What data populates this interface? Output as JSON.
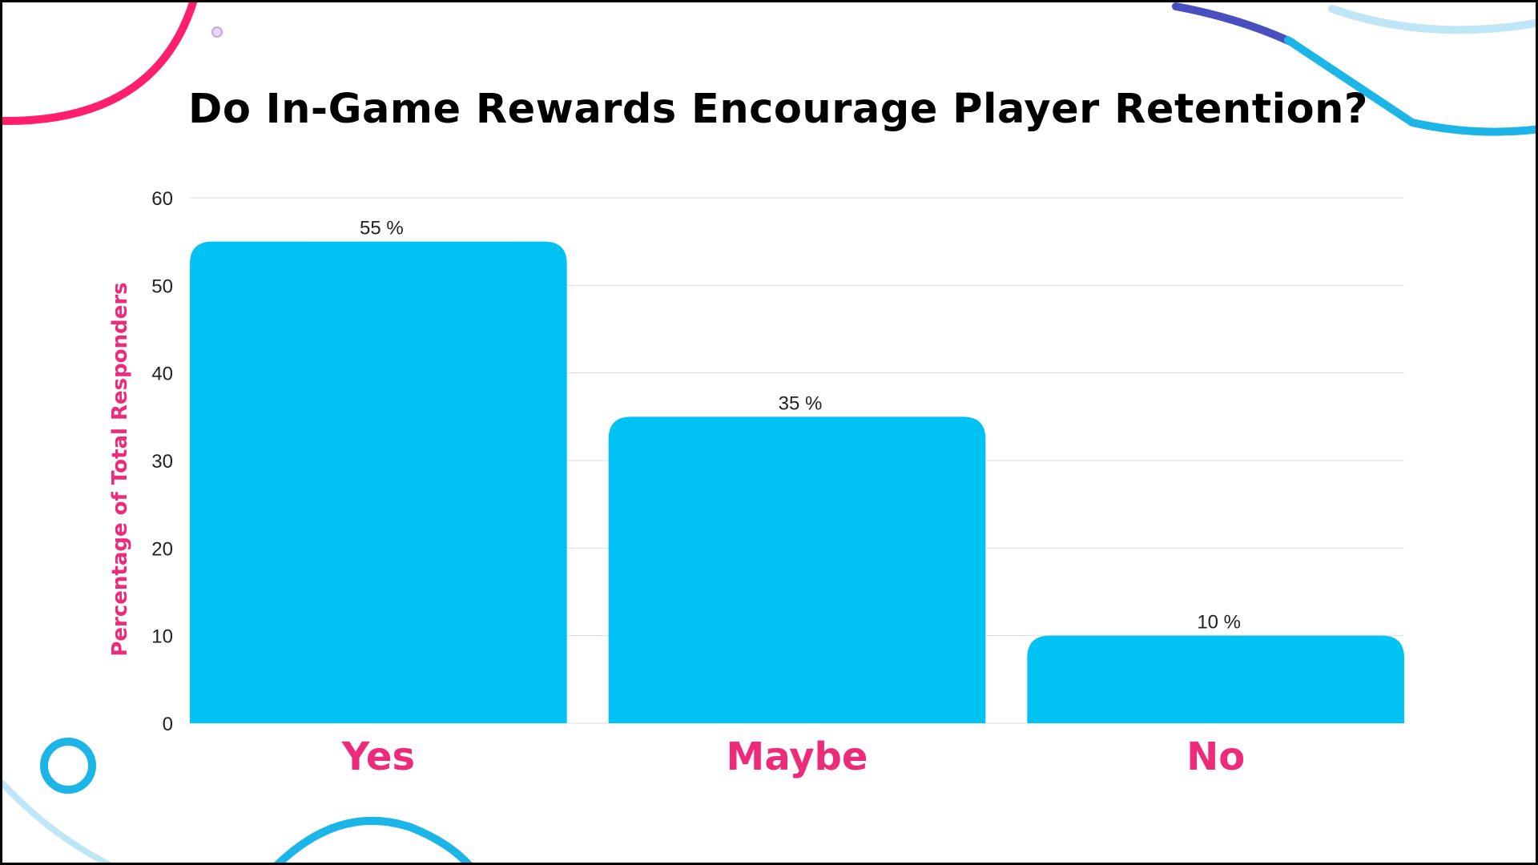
{
  "title": "Do In-Game Rewards Encourage Player Retention?",
  "colors": {
    "bar": "#00C2F3",
    "category_label": "#EE2A7B",
    "axis_label": "#EE2A7B",
    "gridline": "#DDDDDD",
    "deco_pink": "#FF1F6B",
    "deco_blue": "#1CB5E8",
    "deco_light_blue": "#BFE6F7",
    "deco_purple": "#4A4FBF"
  },
  "chart_data": {
    "type": "bar",
    "categories": [
      "Yes",
      "Maybe",
      "No"
    ],
    "values": [
      55,
      35,
      10
    ],
    "value_labels": [
      "55 %",
      "35 %",
      "10 %"
    ],
    "ylabel": "Percentage of Total Responders",
    "xlabel": "",
    "ylim": [
      0,
      60
    ],
    "yticks": [
      0,
      10,
      20,
      30,
      40,
      50,
      60
    ],
    "grid": true
  }
}
